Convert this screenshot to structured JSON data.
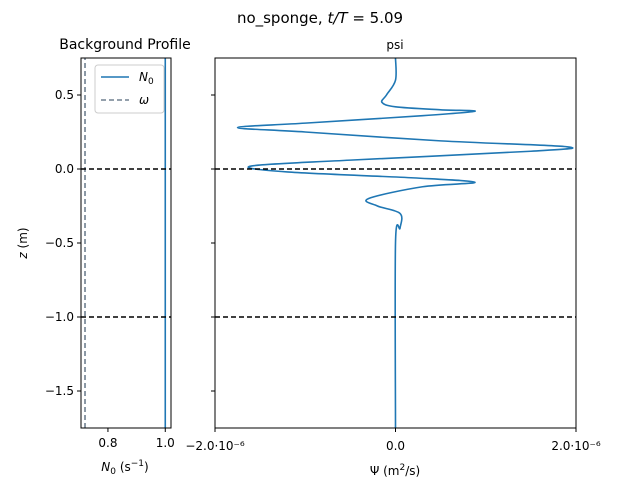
{
  "figure": {
    "suptitle_plain": "no_sponge, ",
    "suptitle_math_var": "t/T",
    "suptitle_value": " = 5.09"
  },
  "chart_data": [
    {
      "type": "line",
      "title": "Background Profile",
      "xlabel_symbol": "N",
      "xlabel_sub": "0",
      "xlabel_unit": " (s",
      "xlabel_unit_exp": "−1",
      "xlabel_unit_close": ")",
      "ylabel_symbol": "z",
      "ylabel_unit": " (m)",
      "xlim": [
        0.706,
        1.02
      ],
      "ylim": [
        -1.75,
        0.75
      ],
      "xticks": [
        0.8,
        1.0
      ],
      "xtick_labels": [
        "0.8",
        "1.0"
      ],
      "yticks": [
        0.5,
        0.0,
        -0.5,
        -1.0,
        -1.5
      ],
      "ytick_labels": [
        "0.5",
        "0.0",
        "−0.5",
        "−1.0",
        "−1.5"
      ],
      "series": [
        {
          "name": "N",
          "name_sub": "0",
          "style": "solid",
          "color": "#1f77b4",
          "x": [
            1.0,
            1.0
          ],
          "y": [
            -1.75,
            0.75
          ]
        },
        {
          "name": "ω",
          "style": "dashed",
          "color": "#708090",
          "x": [
            0.72,
            0.72
          ],
          "y": [
            -1.75,
            0.75
          ]
        }
      ],
      "hlines": [
        0.0,
        -1.0
      ],
      "legend": "top-right"
    },
    {
      "type": "line",
      "title": "psi",
      "xlabel_symbol": "Ψ",
      "xlabel_unit": " (m",
      "xlabel_unit_exp": "2",
      "xlabel_unit_close": "/s)",
      "xlim": [
        -2e-06,
        2e-06
      ],
      "ylim": [
        -1.75,
        0.75
      ],
      "xtick_labels": [
        "−2.0·10⁻⁶",
        "0.0",
        "2.0·10⁻⁶"
      ],
      "xticks": [
        -2e-06,
        0,
        2e-06
      ],
      "series": [
        {
          "name": "psi",
          "color": "#1f77b4",
          "x": [
            0,
            0,
            -1e-07,
            -1.5e-07,
            0,
            5e-07,
            8.8e-07,
            3e-07,
            -1e-06,
            -1.75e-06,
            -1e-06,
            5e-07,
            1.9e-06,
            1.5e-06,
            -5e-07,
            -1.6e-06,
            -1.2e-06,
            2e-07,
            8.8e-07,
            3e-07,
            -3e-07,
            -2e-07,
            5e-08,
            5e-08,
            0,
            0
          ],
          "y": [
            0.75,
            0.6,
            0.5,
            0.45,
            0.42,
            0.4,
            0.39,
            0.36,
            0.31,
            0.28,
            0.25,
            0.19,
            0.15,
            0.12,
            0.06,
            0.02,
            -0.02,
            -0.06,
            -0.09,
            -0.12,
            -0.2,
            -0.25,
            -0.3,
            -0.4,
            -0.5,
            -1.75
          ]
        }
      ],
      "hlines": [
        0.0,
        -1.0
      ]
    }
  ]
}
